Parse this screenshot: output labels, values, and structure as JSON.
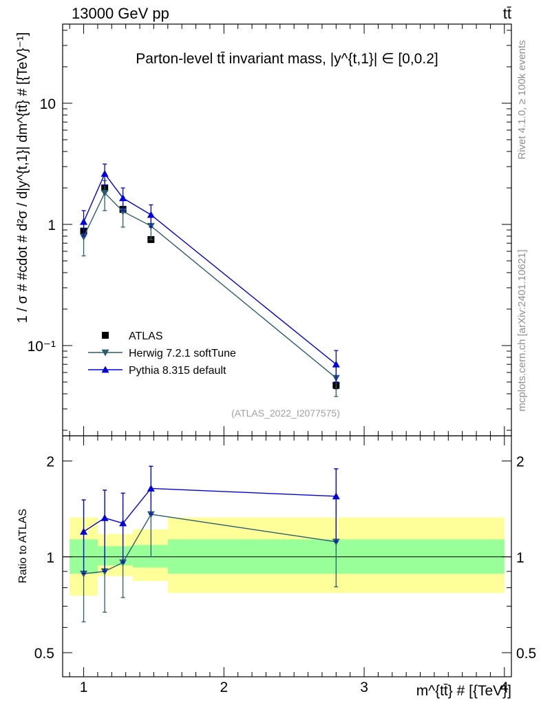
{
  "header": {
    "left": "13000 GeV pp",
    "right": "tt̄"
  },
  "side_labels": {
    "rivet": "Rivet 4.1.0, ≥ 100k events",
    "mcplots": "mcplots.cern.ch [arXiv:2401.10621]"
  },
  "chart_data": [
    {
      "name": "main",
      "type": "line",
      "title": "Parton-level tt̄ invariant mass, |y^{t,1}| ∈ [0,0.2]",
      "ylabel": "1 / σ # #cdot # d²σ / d|y^{t,1}| dm^{tt̄} # [{TeV}⁻¹]",
      "xlim": [
        0.85,
        4.05
      ],
      "ylim": [
        0.018,
        45
      ],
      "yscale": "log",
      "yticks": [
        {
          "value": 0.1,
          "label": "10⁻¹"
        },
        {
          "value": 1,
          "label": "1"
        },
        {
          "value": 10,
          "label": "10"
        }
      ],
      "watermark": "(ATLAS_2022_I2077575)",
      "legend": {
        "position": "bottom-left",
        "entries": [
          "ATLAS",
          "Herwig 7.2.1 softTune",
          "Pythia 8.315 default"
        ]
      },
      "series": [
        {
          "name": "ATLAS",
          "marker": "square",
          "color": "#000000",
          "x": [
            1.0,
            1.15,
            1.28,
            1.48,
            2.8
          ],
          "y": [
            0.88,
            2.0,
            1.33,
            0.75,
            0.047
          ],
          "yerr": [
            0.04,
            0.06,
            0.05,
            0.03,
            0.003
          ]
        },
        {
          "name": "Herwig 7.2.1 softTune",
          "marker": "triangle-down",
          "color": "#2a5d6b",
          "x": [
            1.0,
            1.15,
            1.28,
            1.48,
            2.8
          ],
          "y": [
            0.79,
            1.82,
            1.28,
            0.97,
            0.054
          ],
          "ylo": [
            0.55,
            1.3,
            0.95,
            0.75,
            0.038
          ],
          "yhi": [
            1.05,
            2.3,
            1.6,
            1.2,
            0.07
          ]
        },
        {
          "name": "Pythia 8.315 default",
          "marker": "triangle-up",
          "color": "#0000dd",
          "x": [
            1.0,
            1.15,
            1.28,
            1.48,
            2.8
          ],
          "y": [
            1.05,
            2.62,
            1.65,
            1.2,
            0.07
          ],
          "ylo": [
            0.8,
            2.1,
            1.3,
            0.95,
            0.05
          ],
          "yhi": [
            1.3,
            3.15,
            2.0,
            1.45,
            0.091
          ]
        }
      ]
    },
    {
      "name": "ratio",
      "type": "line",
      "ylabel": "Ratio to ATLAS",
      "xlabel": "m^{tt̄} # [{TeV}]",
      "xlim": [
        0.85,
        4.05
      ],
      "ylim": [
        0.42,
        2.4
      ],
      "yscale": "log",
      "xticks": [
        1,
        2,
        3,
        4
      ],
      "yticks": [
        0.5,
        1,
        2
      ],
      "bands": [
        {
          "x0": 0.9,
          "x1": 1.1,
          "inner": [
            0.885,
            1.135
          ],
          "outer": [
            0.755,
            1.33
          ]
        },
        {
          "x0": 1.1,
          "x1": 1.35,
          "inner": [
            0.94,
            1.08
          ],
          "outer": [
            0.87,
            1.18
          ]
        },
        {
          "x0": 1.35,
          "x1": 1.6,
          "inner": [
            0.925,
            1.09
          ],
          "outer": [
            0.84,
            1.22
          ]
        },
        {
          "x0": 1.6,
          "x1": 4.0,
          "inner": [
            0.885,
            1.135
          ],
          "outer": [
            0.77,
            1.33
          ]
        }
      ],
      "series": [
        {
          "name": "Herwig 7.2.1 softTune",
          "marker": "triangle-down",
          "color": "#2a5d6b",
          "x": [
            1.0,
            1.15,
            1.28,
            1.48,
            2.8
          ],
          "y": [
            0.885,
            0.9,
            0.96,
            1.36,
            1.115
          ],
          "ylo": [
            0.625,
            0.67,
            0.745,
            1.0,
            0.805
          ],
          "yhi": [
            1.51,
            1.62,
            1.585,
            1.925,
            1.89
          ]
        },
        {
          "name": "Pythia 8.315 default",
          "marker": "triangle-up",
          "color": "#0000dd",
          "x": [
            1.0,
            1.15,
            1.28,
            1.48,
            2.8
          ],
          "y": [
            1.2,
            1.325,
            1.275,
            1.64,
            1.55
          ],
          "ylo": [
            0.885,
            0.9,
            0.96,
            1.36,
            1.115
          ],
          "yhi": [
            1.51,
            1.62,
            1.585,
            1.925,
            1.89
          ]
        }
      ]
    }
  ]
}
